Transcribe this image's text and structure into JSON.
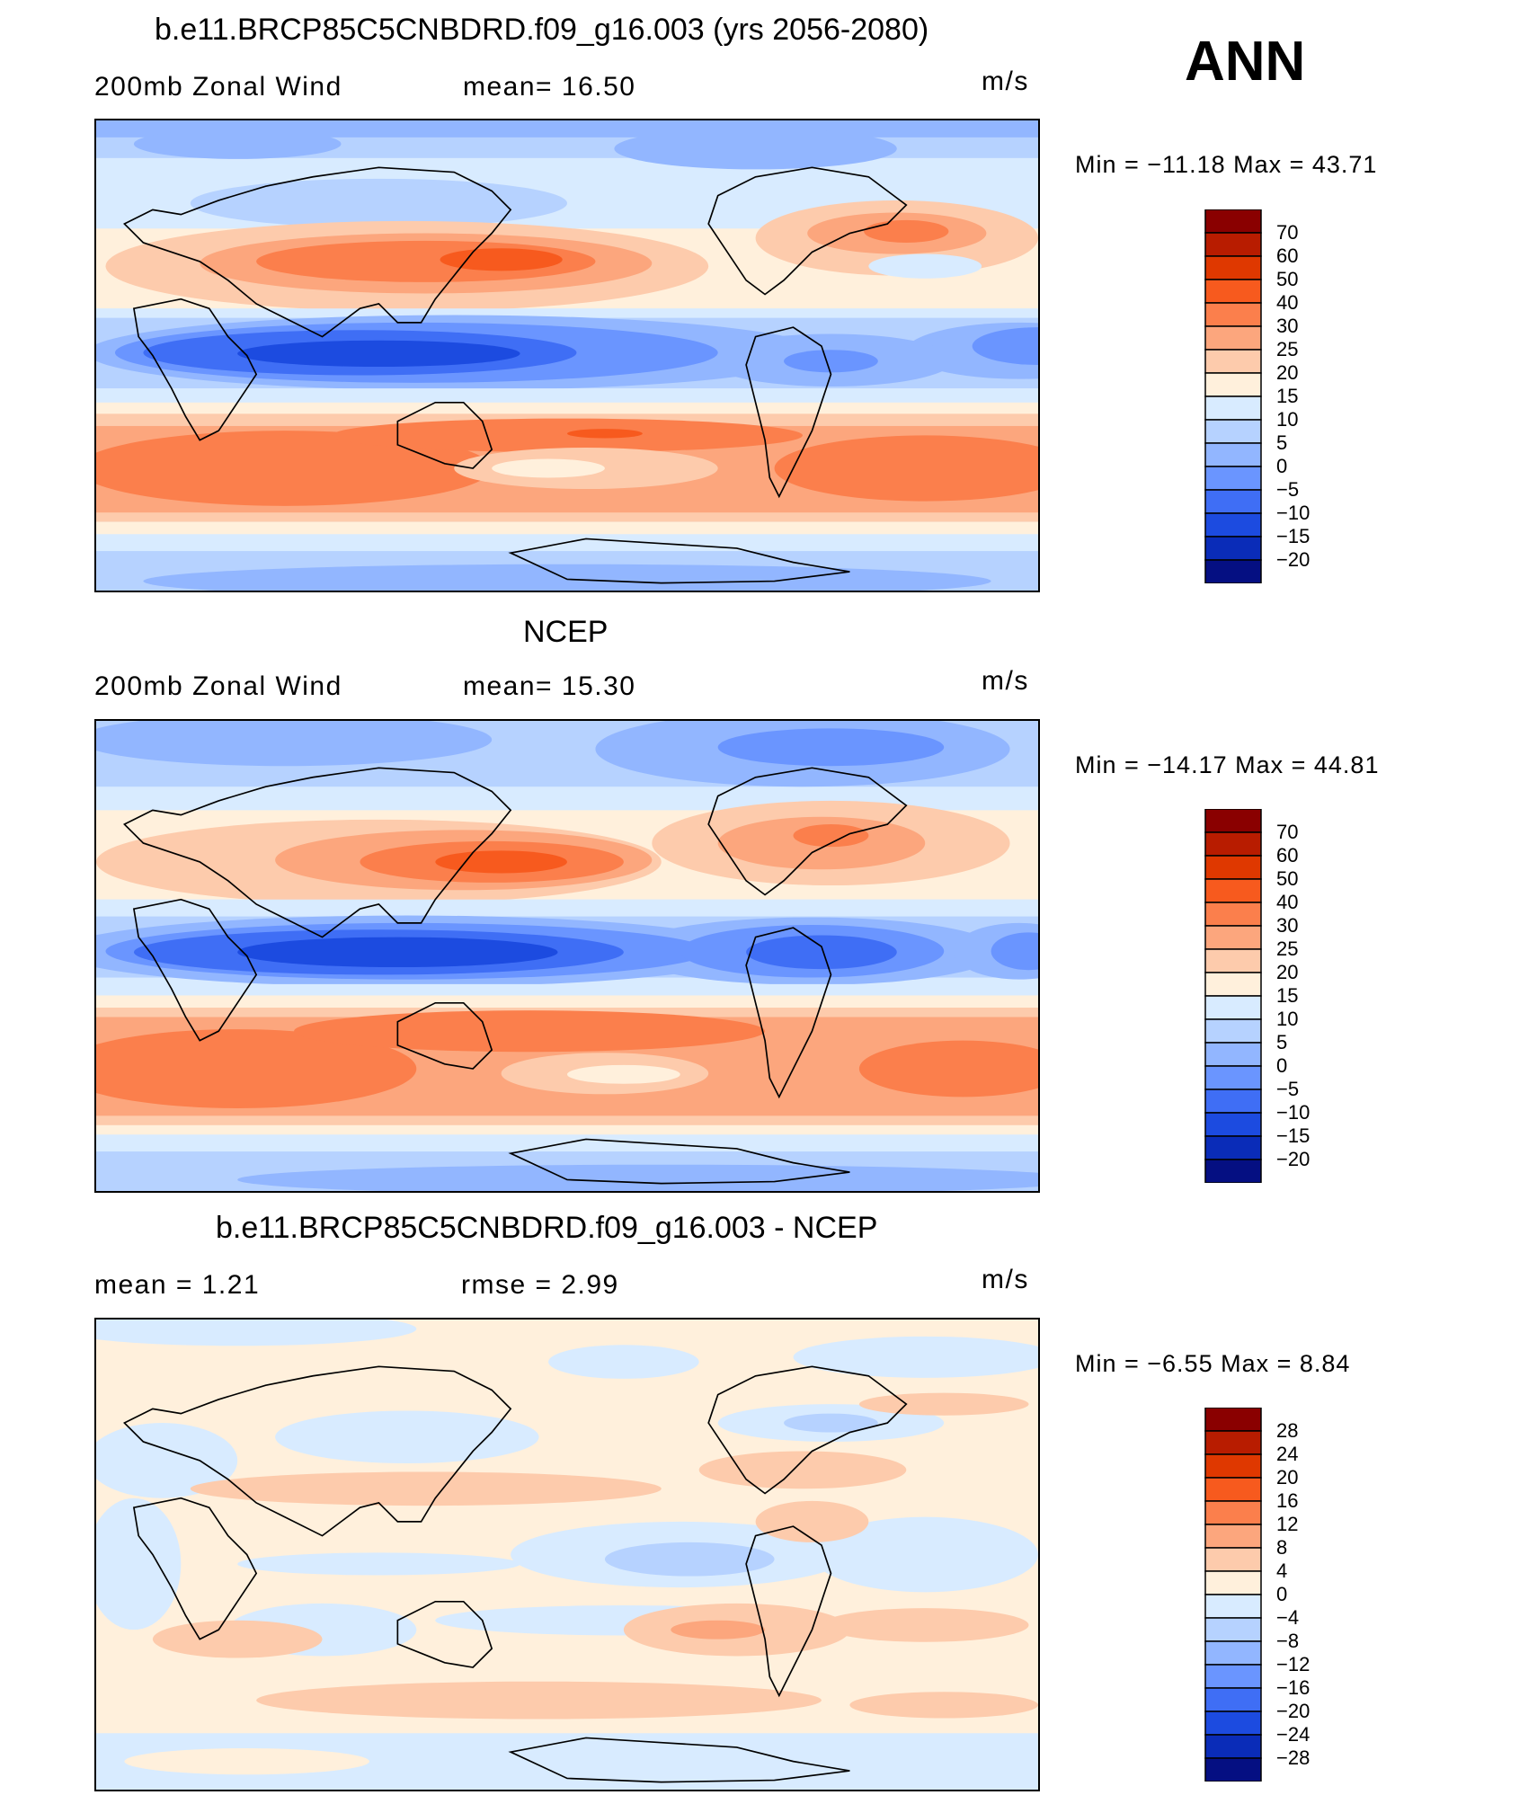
{
  "season": "ANN",
  "panels": [
    {
      "title": "b.e11.BRCP85C5CNBDRD.f09_g16.003 (yrs 2056-2080)",
      "left_label": "200mb Zonal Wind",
      "mid_label": "mean=   16.50",
      "units": "m/s",
      "minmax": "Min  =  −11.18  Max  =     43.71",
      "colorbar": {
        "levels": [
          "70",
          "60",
          "50",
          "40",
          "30",
          "25",
          "20",
          "15",
          "10",
          "5",
          "0",
          "−5",
          "−10",
          "−15",
          "−20"
        ],
        "colors": [
          "#8a0000",
          "#b81c00",
          "#df3800",
          "#f75a1e",
          "#fb7f4c",
          "#fca67d",
          "#fdcbac",
          "#fff0dc",
          "#d8ebff",
          "#b6d2ff",
          "#92b6ff",
          "#6a95ff",
          "#3f6ef5",
          "#1c4be0",
          "#0a2cb8",
          "#050f82"
        ]
      }
    },
    {
      "title": "NCEP",
      "left_label": "200mb Zonal Wind",
      "mid_label": "mean=   15.30",
      "units": "m/s",
      "minmax": "Min  =  −14.17  Max  =     44.81",
      "colorbar": {
        "levels": [
          "70",
          "60",
          "50",
          "40",
          "30",
          "25",
          "20",
          "15",
          "10",
          "5",
          "0",
          "−5",
          "−10",
          "−15",
          "−20"
        ],
        "colors": [
          "#8a0000",
          "#b81c00",
          "#df3800",
          "#f75a1e",
          "#fb7f4c",
          "#fca67d",
          "#fdcbac",
          "#fff0dc",
          "#d8ebff",
          "#b6d2ff",
          "#92b6ff",
          "#6a95ff",
          "#3f6ef5",
          "#1c4be0",
          "#0a2cb8",
          "#050f82"
        ]
      }
    },
    {
      "title": "b.e11.BRCP85C5CNBDRD.f09_g16.003 - NCEP",
      "left_label": "mean =     1.21",
      "mid_label": "rmse =     2.99",
      "units": "m/s",
      "minmax": "Min  =    −6.55  Max  =      8.84",
      "colorbar": {
        "levels": [
          "28",
          "24",
          "20",
          "16",
          "12",
          "8",
          "4",
          "0",
          "−4",
          "−8",
          "−12",
          "−16",
          "−20",
          "−24",
          "−28"
        ],
        "colors": [
          "#8a0000",
          "#b81c00",
          "#df3800",
          "#f75a1e",
          "#fb7f4c",
          "#fca67d",
          "#fdcbac",
          "#fff0dc",
          "#d8ebff",
          "#b6d2ff",
          "#92b6ff",
          "#6a95ff",
          "#3f6ef5",
          "#1c4be0",
          "#0a2cb8",
          "#050f82"
        ]
      }
    }
  ]
}
